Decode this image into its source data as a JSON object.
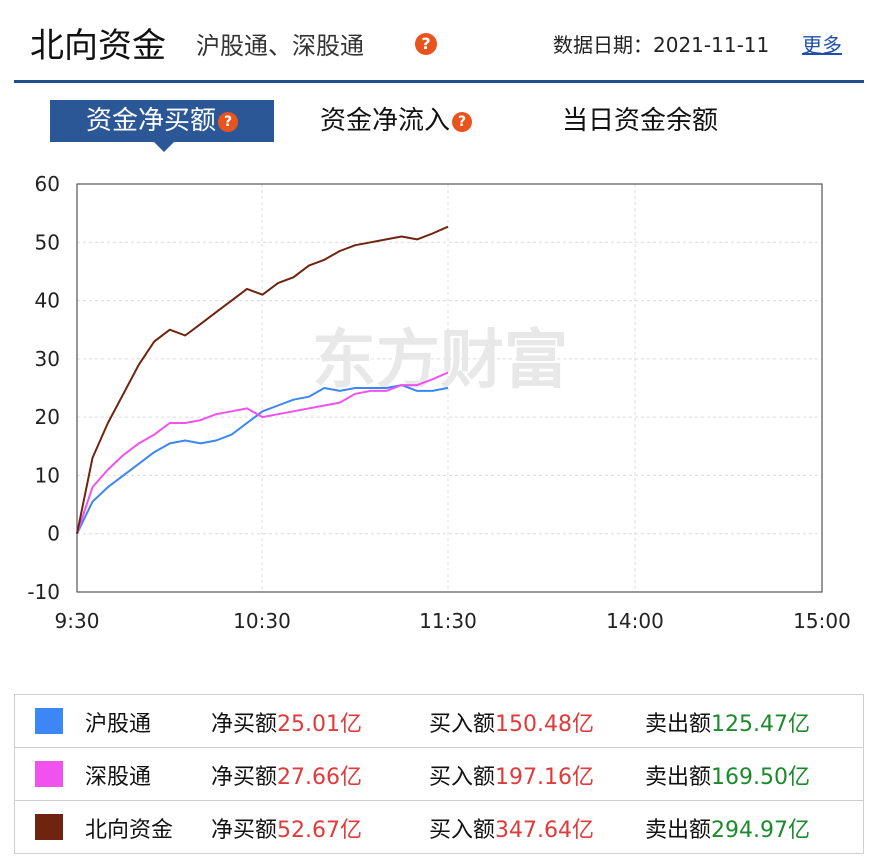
{
  "header": {
    "title": "北向资金",
    "subtitle": "沪股通、深股通",
    "date_label": "数据日期：2021-11-11",
    "more_link": "更多"
  },
  "tabs": [
    {
      "label": "资金净买额",
      "active": true,
      "help": true
    },
    {
      "label": "资金净流入",
      "active": false,
      "help": true
    },
    {
      "label": "当日资金余额",
      "active": false,
      "help": false
    }
  ],
  "watermark": "东方财富",
  "chart_data": {
    "type": "line",
    "x_ticks": [
      "9:30",
      "10:30",
      "11:30",
      "14:00",
      "15:00"
    ],
    "y_ticks": [
      "60",
      "50",
      "40",
      "30",
      "20",
      "10",
      "0",
      "-10"
    ],
    "ylim": [
      -10,
      60
    ],
    "grid": true,
    "series": [
      {
        "name": "沪股通",
        "color": "#3d86f5",
        "times": [
          "9:30",
          "9:35",
          "9:40",
          "9:45",
          "9:50",
          "9:55",
          "10:00",
          "10:05",
          "10:10",
          "10:15",
          "10:20",
          "10:25",
          "10:30",
          "10:35",
          "10:40",
          "10:45",
          "10:50",
          "10:55",
          "11:00",
          "11:05",
          "11:10",
          "11:15",
          "11:20",
          "11:25",
          "11:30"
        ],
        "values": [
          0,
          5.5,
          8,
          10,
          12,
          14,
          15.5,
          16,
          15.5,
          16,
          17,
          19,
          21,
          22,
          23,
          23.5,
          25,
          24.5,
          25,
          25,
          25,
          25.5,
          24.5,
          24.5,
          25.01
        ]
      },
      {
        "name": "深股通",
        "color": "#f052f0",
        "times": [
          "9:30",
          "9:35",
          "9:40",
          "9:45",
          "9:50",
          "9:55",
          "10:00",
          "10:05",
          "10:10",
          "10:15",
          "10:20",
          "10:25",
          "10:30",
          "10:35",
          "10:40",
          "10:45",
          "10:50",
          "10:55",
          "11:00",
          "11:05",
          "11:10",
          "11:15",
          "11:20",
          "11:25",
          "11:30"
        ],
        "values": [
          0,
          8,
          11,
          13.5,
          15.5,
          17,
          19,
          19,
          19.5,
          20.5,
          21,
          21.5,
          20,
          20.5,
          21,
          21.5,
          22,
          22.5,
          24,
          24.5,
          24.5,
          25.5,
          25.5,
          26.5,
          27.66
        ]
      },
      {
        "name": "北向资金",
        "color": "#6f2410",
        "times": [
          "9:30",
          "9:35",
          "9:40",
          "9:45",
          "9:50",
          "9:55",
          "10:00",
          "10:05",
          "10:10",
          "10:15",
          "10:20",
          "10:25",
          "10:30",
          "10:35",
          "10:40",
          "10:45",
          "10:50",
          "10:55",
          "11:00",
          "11:05",
          "11:10",
          "11:15",
          "11:20",
          "11:25",
          "11:30"
        ],
        "values": [
          0,
          13,
          19,
          24,
          29,
          33,
          35,
          34,
          36,
          38,
          40,
          42,
          41,
          43,
          44,
          46,
          47,
          48.5,
          49.5,
          50,
          50.5,
          51,
          50.5,
          51.5,
          52.67
        ]
      }
    ]
  },
  "legend": [
    {
      "name": "沪股通",
      "color": "#3d86f5",
      "net_label": "净买额",
      "net_value": "25.01亿",
      "buy_label": "买入额",
      "buy_value": "150.48亿",
      "sell_label": "卖出额",
      "sell_value": "125.47亿"
    },
    {
      "name": "深股通",
      "color": "#f052f0",
      "net_label": "净买额",
      "net_value": "27.66亿",
      "buy_label": "买入额",
      "buy_value": "197.16亿",
      "sell_label": "卖出额",
      "sell_value": "169.50亿"
    },
    {
      "name": "北向资金",
      "color": "#6f2410",
      "net_label": "净买额",
      "net_value": "52.67亿",
      "buy_label": "买入额",
      "buy_value": "347.64亿",
      "sell_label": "卖出额",
      "sell_value": "294.97亿"
    }
  ]
}
